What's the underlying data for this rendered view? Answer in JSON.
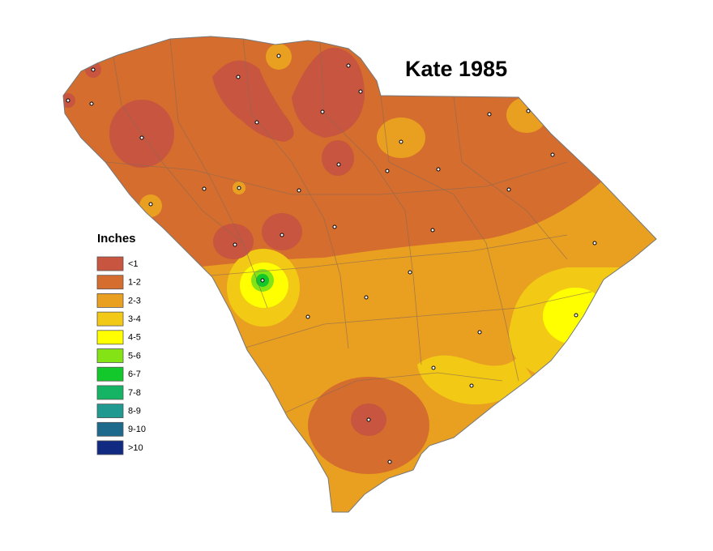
{
  "title": "Kate 1985",
  "legend": {
    "title": "Inches",
    "items": [
      {
        "label": "<1",
        "color": "#c8553f"
      },
      {
        "label": "1-2",
        "color": "#d46d2e"
      },
      {
        "label": "2-3",
        "color": "#e9a020"
      },
      {
        "label": "3-4",
        "color": "#f2c914"
      },
      {
        "label": "4-5",
        "color": "#ffff00"
      },
      {
        "label": "5-6",
        "color": "#84e314"
      },
      {
        "label": "6-7",
        "color": "#12c82a"
      },
      {
        "label": "7-8",
        "color": "#14b464"
      },
      {
        "label": "8-9",
        "color": "#209a90"
      },
      {
        "label": "9-10",
        "color": "#1d6a8c"
      },
      {
        "label": ">10",
        "color": "#0f2a80"
      }
    ]
  }
}
